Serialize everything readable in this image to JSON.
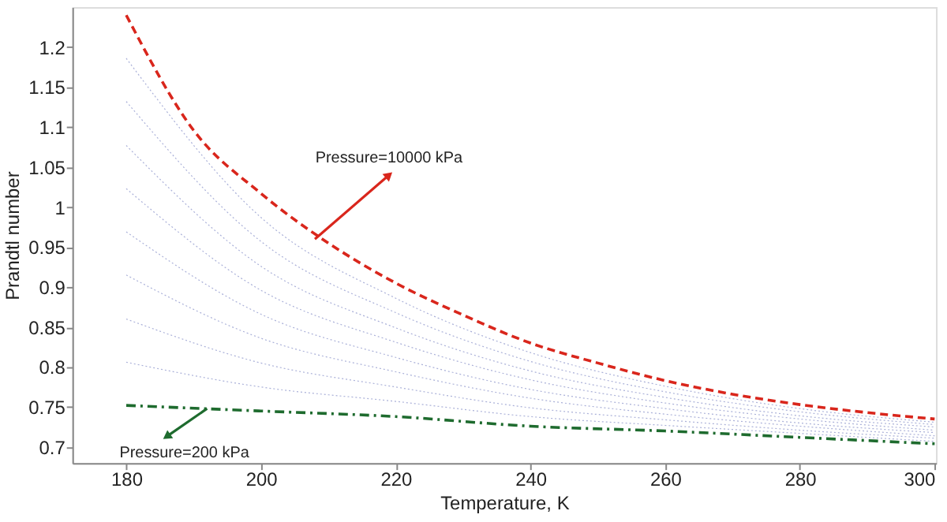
{
  "chart_data": {
    "type": "line",
    "xlabel": "Temperature, K",
    "ylabel": "Prandtl number",
    "xlim": [
      172,
      300.2
    ],
    "ylim": [
      0.68,
      1.25
    ],
    "xticks": [
      180,
      200,
      220,
      240,
      260,
      280,
      300
    ],
    "yticks": [
      0.7,
      0.75,
      0.8,
      0.85,
      0.9,
      0.95,
      1,
      1.05,
      1.1,
      1.15,
      1.2
    ],
    "grid": false,
    "marker": "none",
    "series": [
      {
        "color": "#aab0d8",
        "line_style": "dotted",
        "x": [
          180,
          200,
          220,
          240,
          260,
          280,
          300
        ],
        "values": [
          0.806,
          0.775,
          0.757,
          0.738,
          0.727,
          0.717,
          0.707
        ]
      },
      {
        "color": "#aab0d8",
        "line_style": "dotted",
        "x": [
          180,
          200,
          220,
          240,
          260,
          280,
          300
        ],
        "values": [
          0.86,
          0.805,
          0.775,
          0.749,
          0.734,
          0.721,
          0.711
        ]
      },
      {
        "color": "#aab0d8",
        "line_style": "dotted",
        "x": [
          180,
          200,
          220,
          240,
          260,
          280,
          300
        ],
        "values": [
          0.915,
          0.836,
          0.794,
          0.761,
          0.741,
          0.726,
          0.714
        ]
      },
      {
        "color": "#aab0d8",
        "line_style": "dotted",
        "x": [
          180,
          200,
          220,
          240,
          260,
          280,
          300
        ],
        "values": [
          0.969,
          0.866,
          0.812,
          0.772,
          0.748,
          0.73,
          0.718
        ]
      },
      {
        "color": "#aab0d8",
        "line_style": "dotted",
        "x": [
          180,
          200,
          220,
          240,
          260,
          280,
          300
        ],
        "values": [
          1.023,
          0.896,
          0.831,
          0.784,
          0.755,
          0.735,
          0.721
        ]
      },
      {
        "color": "#aab0d8",
        "line_style": "dotted",
        "x": [
          180,
          200,
          220,
          240,
          260,
          280,
          300
        ],
        "values": [
          1.077,
          0.926,
          0.849,
          0.795,
          0.762,
          0.739,
          0.725
        ]
      },
      {
        "color": "#aab0d8",
        "line_style": "dotted",
        "x": [
          180,
          200,
          220,
          240,
          260,
          280,
          300
        ],
        "values": [
          1.132,
          0.957,
          0.868,
          0.807,
          0.769,
          0.744,
          0.728
        ]
      },
      {
        "color": "#aab0d8",
        "line_style": "dotted",
        "x": [
          180,
          200,
          220,
          240,
          260,
          280,
          300
        ],
        "values": [
          1.186,
          0.987,
          0.886,
          0.818,
          0.776,
          0.748,
          0.731
        ]
      },
      {
        "color": "#d9261c",
        "line_style": "dashed",
        "x": [
          180,
          190,
          200,
          210,
          220,
          230,
          240,
          250,
          260,
          270,
          280,
          290,
          300
        ],
        "values": [
          1.24,
          1.096,
          1.017,
          0.955,
          0.905,
          0.865,
          0.83,
          0.805,
          0.783,
          0.766,
          0.753,
          0.743,
          0.735
        ]
      },
      {
        "color": "#1e6b2e",
        "line_style": "dashdot",
        "x": [
          180,
          200,
          220,
          240,
          260,
          280,
          300
        ],
        "values": [
          0.752,
          0.745,
          0.738,
          0.726,
          0.72,
          0.712,
          0.704
        ]
      }
    ],
    "annotations": [
      {
        "text": "Pressure=10000 kPa",
        "x": 208,
        "y": 0.96
      },
      {
        "text": "Pressure=200 kPa",
        "x": 192,
        "y": 0.748
      }
    ]
  }
}
